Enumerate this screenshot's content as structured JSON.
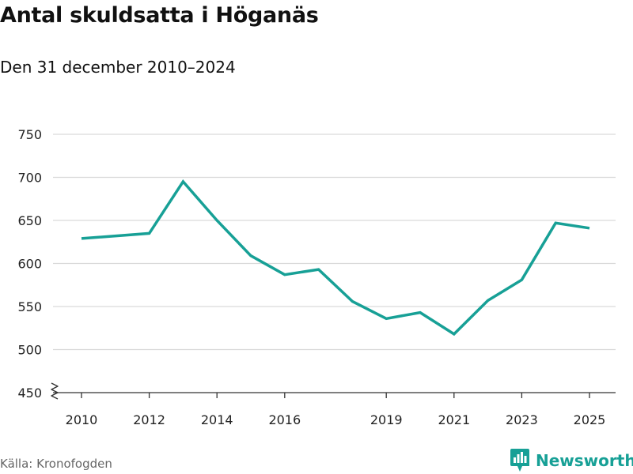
{
  "header": {
    "title": "Antal skuldsatta i Höganäs",
    "subtitle": "Den 31 december 2010–2024"
  },
  "footer": {
    "source": "Källa: Kronofogden",
    "brand": "Newsworthy"
  },
  "colors": {
    "line": "#17a096",
    "brand": "#17a096",
    "grid": "#d9d9d9",
    "axis": "#333333"
  },
  "chart_data": {
    "type": "line",
    "title": "Antal skuldsatta i Höganäs",
    "subtitle": "Den 31 december 2010–2024",
    "xlabel": "",
    "ylabel": "",
    "x": [
      2010,
      2012,
      2013,
      2014,
      2015,
      2016,
      2017,
      2018,
      2019,
      2020,
      2021,
      2022,
      2023,
      2024,
      2025
    ],
    "series": [
      {
        "name": "Antal skuldsatta",
        "values": [
          629,
          635,
          695,
          650,
          609,
          587,
          593,
          556,
          536,
          543,
          518,
          557,
          581,
          647,
          641
        ]
      }
    ],
    "xlim": [
      2010,
      2025
    ],
    "ylim": [
      450,
      750
    ],
    "yticks": [
      "450",
      "500",
      "550",
      "600",
      "650",
      "700",
      "750"
    ],
    "xticks": [
      "2010",
      "2012",
      "2014",
      "2016",
      "2019",
      "2021",
      "2023",
      "2025"
    ],
    "grid": true,
    "y_axis_break": true,
    "legend": "none"
  }
}
